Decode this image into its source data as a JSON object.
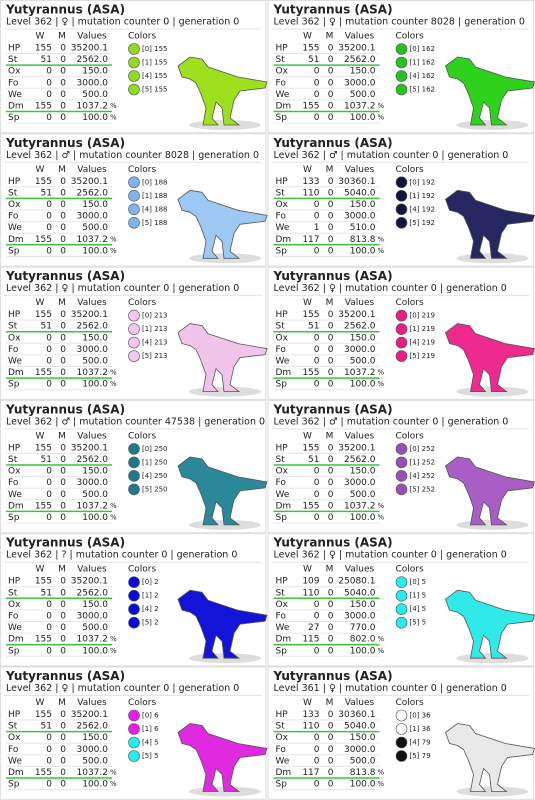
{
  "cards": [
    {
      "title": "Yutyrannus (ASA)",
      "subtitle": "Level 362 | ♀ | mutation counter 0 | generation 0",
      "headers": [
        "W",
        "M",
        "Values"
      ],
      "colors_label": "Colors",
      "body_color": "#9ee01e",
      "stats": [
        [
          "HP",
          "155",
          "0",
          "35200.1"
        ],
        [
          "St",
          "51",
          "0",
          "2562.0"
        ],
        [
          "Ox",
          "0",
          "0",
          "150.0"
        ],
        [
          "Fo",
          "0",
          "0",
          "3000.0"
        ],
        [
          "We",
          "0",
          "0",
          "500.0"
        ],
        [
          "Dm",
          "155",
          "0",
          "1037.2",
          "%"
        ],
        [
          "Sp",
          "0",
          "0",
          "100.0",
          "%"
        ]
      ],
      "colors": [
        {
          "label": "[0] 155",
          "color": "#8fdc1e"
        },
        {
          "label": "[1] 155",
          "color": "#8fdc1e"
        },
        {
          "label": "[4] 155",
          "color": "#8fdc1e"
        },
        {
          "label": "[5] 155",
          "color": "#8fdc1e"
        }
      ]
    },
    {
      "title": "Yutyrannus (ASA)",
      "subtitle": "Level 362 | ♀ | mutation counter 8028 | generation 0",
      "headers": [
        "W",
        "M",
        "Values"
      ],
      "colors_label": "Colors",
      "body_color": "#2ed21c",
      "stats": [
        [
          "HP",
          "155",
          "0",
          "35200.1"
        ],
        [
          "St",
          "51",
          "0",
          "2562.0"
        ],
        [
          "Ox",
          "0",
          "0",
          "150.0"
        ],
        [
          "Fo",
          "0",
          "0",
          "3000.0"
        ],
        [
          "We",
          "0",
          "0",
          "500.0"
        ],
        [
          "Dm",
          "155",
          "0",
          "1037.2",
          "%"
        ],
        [
          "Sp",
          "0",
          "0",
          "100.0",
          "%"
        ]
      ],
      "colors": [
        {
          "label": "[0] 162",
          "color": "#22c61a"
        },
        {
          "label": "[1] 162",
          "color": "#22c61a"
        },
        {
          "label": "[4] 162",
          "color": "#22c61a"
        },
        {
          "label": "[5] 162",
          "color": "#22c61a"
        }
      ]
    },
    {
      "title": "Yutyrannus (ASA)",
      "subtitle": "Level 362 | ♂ | mutation counter 8028 | generation 0",
      "headers": [
        "W",
        "M",
        "Values"
      ],
      "colors_label": "Colors",
      "body_color": "#9cc8f4",
      "stats": [
        [
          "HP",
          "155",
          "0",
          "35200.1"
        ],
        [
          "St",
          "51",
          "0",
          "2562.0"
        ],
        [
          "Ox",
          "0",
          "0",
          "150.0"
        ],
        [
          "Fo",
          "0",
          "0",
          "3000.0"
        ],
        [
          "We",
          "0",
          "0",
          "500.0"
        ],
        [
          "Dm",
          "155",
          "0",
          "1037.2",
          "%"
        ],
        [
          "Sp",
          "0",
          "0",
          "100.0",
          "%"
        ]
      ],
      "colors": [
        {
          "label": "[0] 188",
          "color": "#7fb3f0"
        },
        {
          "label": "[1] 188",
          "color": "#7fb3f0"
        },
        {
          "label": "[4] 188",
          "color": "#7fb3f0"
        },
        {
          "label": "[5] 188",
          "color": "#7fb3f0"
        }
      ]
    },
    {
      "title": "Yutyrannus (ASA)",
      "subtitle": "Level 362 | ♂ | mutation counter 0 | generation 0",
      "headers": [
        "W",
        "M",
        "Values"
      ],
      "colors_label": "Colors",
      "body_color": "#262660",
      "stats": [
        [
          "HP",
          "133",
          "0",
          "30360.1"
        ],
        [
          "St",
          "110",
          "0",
          "5040.0"
        ],
        [
          "Ox",
          "0",
          "0",
          "150.0"
        ],
        [
          "Fo",
          "0",
          "0",
          "3000.0"
        ],
        [
          "We",
          "1",
          "0",
          "510.0"
        ],
        [
          "Dm",
          "117",
          "0",
          "813.8",
          "%"
        ],
        [
          "Sp",
          "0",
          "0",
          "100.0",
          "%"
        ]
      ],
      "colors": [
        {
          "label": "[0] 192",
          "color": "#141440"
        },
        {
          "label": "[1] 192",
          "color": "#141440"
        },
        {
          "label": "[4] 192",
          "color": "#141440"
        },
        {
          "label": "[5] 192",
          "color": "#141440"
        }
      ]
    },
    {
      "title": "Yutyrannus (ASA)",
      "subtitle": "Level 362 | ♀ | mutation counter 0 | generation 0",
      "headers": [
        "W",
        "M",
        "Values"
      ],
      "colors_label": "Colors",
      "body_color": "#f0c4ea",
      "stats": [
        [
          "HP",
          "155",
          "0",
          "35200.1"
        ],
        [
          "St",
          "51",
          "0",
          "2562.0"
        ],
        [
          "Ox",
          "0",
          "0",
          "150.0"
        ],
        [
          "Fo",
          "0",
          "0",
          "3000.0"
        ],
        [
          "We",
          "0",
          "0",
          "500.0"
        ],
        [
          "Dm",
          "155",
          "0",
          "1037.2",
          "%"
        ],
        [
          "Sp",
          "0",
          "0",
          "100.0",
          "%"
        ]
      ],
      "colors": [
        {
          "label": "[0] 213",
          "color": "#f6c6ee"
        },
        {
          "label": "[1] 213",
          "color": "#f6c6ee"
        },
        {
          "label": "[4] 213",
          "color": "#f6c6ee"
        },
        {
          "label": "[5] 213",
          "color": "#f6c6ee"
        }
      ]
    },
    {
      "title": "Yutyrannus (ASA)",
      "subtitle": "Level 362 | ♀ | mutation counter 0 | generation 0",
      "headers": [
        "W",
        "M",
        "Values"
      ],
      "colors_label": "Colors",
      "body_color": "#ee2a8e",
      "stats": [
        [
          "HP",
          "155",
          "0",
          "35200.1"
        ],
        [
          "St",
          "51",
          "0",
          "2562.0"
        ],
        [
          "Ox",
          "0",
          "0",
          "150.0"
        ],
        [
          "Fo",
          "0",
          "0",
          "3000.0"
        ],
        [
          "We",
          "0",
          "0",
          "500.0"
        ],
        [
          "Dm",
          "155",
          "0",
          "1037.2",
          "%"
        ],
        [
          "Sp",
          "0",
          "0",
          "100.0",
          "%"
        ]
      ],
      "colors": [
        {
          "label": "[0] 219",
          "color": "#ee1a88"
        },
        {
          "label": "[1] 219",
          "color": "#ee1a88"
        },
        {
          "label": "[4] 219",
          "color": "#ee1a88"
        },
        {
          "label": "[5] 219",
          "color": "#ee1a88"
        }
      ]
    },
    {
      "title": "Yutyrannus (ASA)",
      "subtitle": "Level 362 | ♂ | mutation counter 47538 | generation 0",
      "headers": [
        "W",
        "M",
        "Values"
      ],
      "colors_label": "Colors",
      "body_color": "#2a8898",
      "stats": [
        [
          "HP",
          "155",
          "0",
          "35200.1"
        ],
        [
          "St",
          "51",
          "0",
          "2562.0"
        ],
        [
          "Ox",
          "0",
          "0",
          "150.0"
        ],
        [
          "Fo",
          "0",
          "0",
          "3000.0"
        ],
        [
          "We",
          "0",
          "0",
          "500.0"
        ],
        [
          "Dm",
          "155",
          "0",
          "1037.2",
          "%"
        ],
        [
          "Sp",
          "0",
          "0",
          "100.0",
          "%"
        ]
      ],
      "colors": [
        {
          "label": "[0] 250",
          "color": "#1e7a8a"
        },
        {
          "label": "[1] 250",
          "color": "#1e7a8a"
        },
        {
          "label": "[4] 250",
          "color": "#1e7a8a"
        },
        {
          "label": "[5] 250",
          "color": "#1e7a8a"
        }
      ]
    },
    {
      "title": "Yutyrannus (ASA)",
      "subtitle": "Level 362 | ♂ | mutation counter 0 | generation 0",
      "headers": [
        "W",
        "M",
        "Values"
      ],
      "colors_label": "Colors",
      "body_color": "#a85ec4",
      "stats": [
        [
          "HP",
          "155",
          "0",
          "35200.1"
        ],
        [
          "St",
          "51",
          "0",
          "2562.0"
        ],
        [
          "Ox",
          "0",
          "0",
          "150.0"
        ],
        [
          "Fo",
          "0",
          "0",
          "3000.0"
        ],
        [
          "We",
          "0",
          "0",
          "500.0"
        ],
        [
          "Dm",
          "155",
          "0",
          "1037.2",
          "%"
        ],
        [
          "Sp",
          "0",
          "0",
          "100.0",
          "%"
        ]
      ],
      "colors": [
        {
          "label": "[0] 252",
          "color": "#9a4fb8"
        },
        {
          "label": "[1] 252",
          "color": "#9a4fb8"
        },
        {
          "label": "[4] 252",
          "color": "#9a4fb8"
        },
        {
          "label": "[5] 252",
          "color": "#9a4fb8"
        }
      ]
    },
    {
      "title": "Yutyrannus (ASA)",
      "subtitle": "Level 362 | ? | mutation counter 0 | generation 0",
      "headers": [
        "W",
        "M",
        "Values"
      ],
      "colors_label": "Colors",
      "body_color": "#1414d8",
      "stats": [
        [
          "HP",
          "155",
          "0",
          "35200.1"
        ],
        [
          "St",
          "51",
          "0",
          "2562.0"
        ],
        [
          "Ox",
          "0",
          "0",
          "150.0"
        ],
        [
          "Fo",
          "0",
          "0",
          "3000.0"
        ],
        [
          "We",
          "0",
          "0",
          "500.0"
        ],
        [
          "Dm",
          "155",
          "0",
          "1037.2",
          "%"
        ],
        [
          "Sp",
          "0",
          "0",
          "100.0",
          "%"
        ]
      ],
      "colors": [
        {
          "label": "[0] 2",
          "color": "#0a0ae0"
        },
        {
          "label": "[1] 2",
          "color": "#0a0ae0"
        },
        {
          "label": "[4] 2",
          "color": "#0a0ae0"
        },
        {
          "label": "[5] 2",
          "color": "#0a0ae0"
        }
      ]
    },
    {
      "title": "Yutyrannus (ASA)",
      "subtitle": "Level 362 | ♀ | mutation counter 0 | generation 0",
      "headers": [
        "W",
        "M",
        "Values"
      ],
      "colors_label": "Colors",
      "body_color": "#30eaea",
      "stats": [
        [
          "HP",
          "109",
          "0",
          "25080.1"
        ],
        [
          "St",
          "110",
          "0",
          "5040.0"
        ],
        [
          "Ox",
          "0",
          "0",
          "150.0"
        ],
        [
          "Fo",
          "0",
          "0",
          "3000.0"
        ],
        [
          "We",
          "27",
          "0",
          "770.0"
        ],
        [
          "Dm",
          "115",
          "0",
          "802.0",
          "%"
        ],
        [
          "Sp",
          "0",
          "0",
          "100.0",
          "%"
        ]
      ],
      "colors": [
        {
          "label": "[0] 5",
          "color": "#22f0f0"
        },
        {
          "label": "[1] 5",
          "color": "#22f0f0"
        },
        {
          "label": "[4] 5",
          "color": "#22f0f0"
        },
        {
          "label": "[5] 5",
          "color": "#22f0f0"
        }
      ]
    },
    {
      "title": "Yutyrannus (ASA)",
      "subtitle": "Level 362 | ♀ | mutation counter 0 | generation 0",
      "headers": [
        "W",
        "M",
        "Values"
      ],
      "colors_label": "Colors",
      "body_color": "#e02ae0",
      "stats": [
        [
          "HP",
          "155",
          "0",
          "35200.1"
        ],
        [
          "St",
          "51",
          "0",
          "2562.0"
        ],
        [
          "Ox",
          "0",
          "0",
          "150.0"
        ],
        [
          "Fo",
          "0",
          "0",
          "3000.0"
        ],
        [
          "We",
          "0",
          "0",
          "500.0"
        ],
        [
          "Dm",
          "155",
          "0",
          "1037.2",
          "%"
        ],
        [
          "Sp",
          "0",
          "0",
          "100.0",
          "%"
        ]
      ],
      "colors": [
        {
          "label": "[0] 6",
          "color": "#ee1aee"
        },
        {
          "label": "[1] 6",
          "color": "#ee1aee"
        },
        {
          "label": "[4] 5",
          "color": "#22f0f0"
        },
        {
          "label": "[5] 5",
          "color": "#22f0f0"
        }
      ]
    },
    {
      "title": "Yutyrannus (ASA)",
      "subtitle": "Level 361 | ♀ | mutation counter 0 | generation 0",
      "headers": [
        "W",
        "M",
        "Values"
      ],
      "colors_label": "Colors",
      "body_color": "#e8e8e8",
      "stats": [
        [
          "HP",
          "133",
          "0",
          "30360.1"
        ],
        [
          "St",
          "110",
          "0",
          "5040.0"
        ],
        [
          "Ox",
          "0",
          "0",
          "150.0"
        ],
        [
          "Fo",
          "0",
          "0",
          "3000.0"
        ],
        [
          "We",
          "0",
          "0",
          "500.0"
        ],
        [
          "Dm",
          "117",
          "0",
          "813.8",
          "%"
        ],
        [
          "Sp",
          "0",
          "0",
          "100.0",
          "%"
        ]
      ],
      "colors": [
        {
          "label": "[0] 36",
          "color": "#ffffff"
        },
        {
          "label": "[1] 36",
          "color": "#ffffff"
        },
        {
          "label": "[4] 79",
          "color": "#111111"
        },
        {
          "label": "[5] 79",
          "color": "#111111"
        }
      ]
    }
  ]
}
